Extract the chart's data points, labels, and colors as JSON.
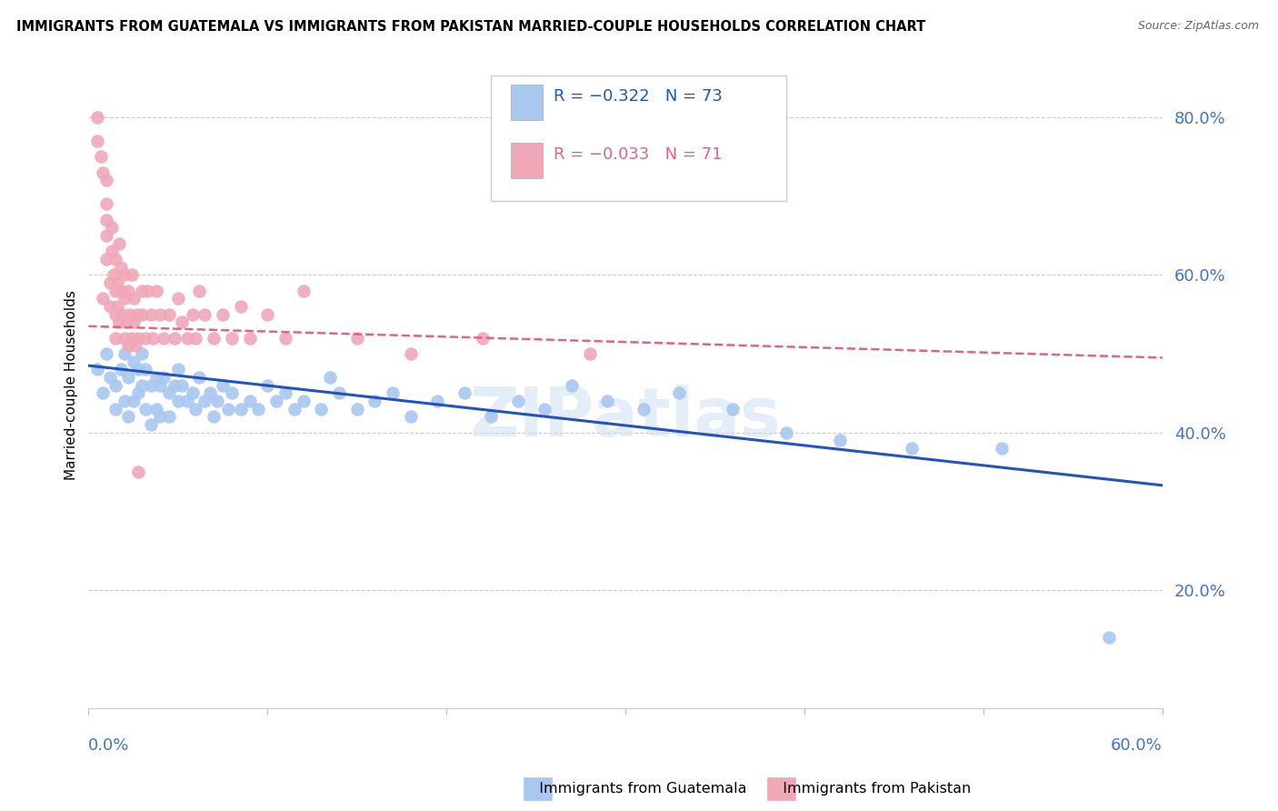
{
  "title": "IMMIGRANTS FROM GUATEMALA VS IMMIGRANTS FROM PAKISTAN MARRIED-COUPLE HOUSEHOLDS CORRELATION CHART",
  "source": "Source: ZipAtlas.com",
  "ylabel": "Married-couple Households",
  "yticks": [
    20.0,
    40.0,
    60.0,
    80.0
  ],
  "xlim": [
    0.0,
    0.6
  ],
  "ylim": [
    0.05,
    0.87
  ],
  "guatemala_color": "#a8c8f0",
  "pakistan_color": "#f0a8b8",
  "guatemala_line_color": "#2255bb",
  "pakistan_line_color": "#dd6688",
  "legend_R_guatemala": "R = −0.322",
  "legend_N_guatemala": "N = 73",
  "legend_R_pakistan": "R = −0.033",
  "legend_N_pakistan": "N = 71",
  "guatemala_x": [
    0.005,
    0.008,
    0.01,
    0.012,
    0.015,
    0.015,
    0.018,
    0.02,
    0.02,
    0.022,
    0.022,
    0.025,
    0.025,
    0.028,
    0.028,
    0.03,
    0.03,
    0.032,
    0.032,
    0.035,
    0.035,
    0.038,
    0.038,
    0.04,
    0.04,
    0.042,
    0.045,
    0.045,
    0.048,
    0.05,
    0.05,
    0.052,
    0.055,
    0.058,
    0.06,
    0.062,
    0.065,
    0.068,
    0.07,
    0.072,
    0.075,
    0.078,
    0.08,
    0.085,
    0.09,
    0.095,
    0.1,
    0.105,
    0.11,
    0.115,
    0.12,
    0.13,
    0.135,
    0.14,
    0.15,
    0.16,
    0.17,
    0.18,
    0.195,
    0.21,
    0.225,
    0.24,
    0.255,
    0.27,
    0.29,
    0.31,
    0.33,
    0.36,
    0.39,
    0.42,
    0.46,
    0.51,
    0.57
  ],
  "guatemala_y": [
    0.48,
    0.45,
    0.5,
    0.47,
    0.46,
    0.43,
    0.48,
    0.5,
    0.44,
    0.47,
    0.42,
    0.49,
    0.44,
    0.48,
    0.45,
    0.5,
    0.46,
    0.48,
    0.43,
    0.46,
    0.41,
    0.47,
    0.43,
    0.46,
    0.42,
    0.47,
    0.45,
    0.42,
    0.46,
    0.48,
    0.44,
    0.46,
    0.44,
    0.45,
    0.43,
    0.47,
    0.44,
    0.45,
    0.42,
    0.44,
    0.46,
    0.43,
    0.45,
    0.43,
    0.44,
    0.43,
    0.46,
    0.44,
    0.45,
    0.43,
    0.44,
    0.43,
    0.47,
    0.45,
    0.43,
    0.44,
    0.45,
    0.42,
    0.44,
    0.45,
    0.42,
    0.44,
    0.43,
    0.46,
    0.44,
    0.43,
    0.45,
    0.43,
    0.4,
    0.39,
    0.38,
    0.38,
    0.14
  ],
  "pakistan_x": [
    0.005,
    0.005,
    0.007,
    0.008,
    0.008,
    0.01,
    0.01,
    0.01,
    0.01,
    0.01,
    0.012,
    0.012,
    0.013,
    0.013,
    0.014,
    0.015,
    0.015,
    0.015,
    0.015,
    0.016,
    0.016,
    0.017,
    0.017,
    0.018,
    0.018,
    0.019,
    0.02,
    0.02,
    0.02,
    0.021,
    0.022,
    0.022,
    0.023,
    0.024,
    0.024,
    0.025,
    0.025,
    0.026,
    0.027,
    0.028,
    0.028,
    0.03,
    0.03,
    0.032,
    0.033,
    0.035,
    0.036,
    0.038,
    0.04,
    0.042,
    0.045,
    0.048,
    0.05,
    0.052,
    0.055,
    0.058,
    0.06,
    0.062,
    0.065,
    0.07,
    0.075,
    0.08,
    0.085,
    0.09,
    0.1,
    0.11,
    0.12,
    0.15,
    0.18,
    0.22,
    0.28
  ],
  "pakistan_y": [
    0.8,
    0.77,
    0.75,
    0.57,
    0.73,
    0.72,
    0.69,
    0.67,
    0.65,
    0.62,
    0.59,
    0.56,
    0.66,
    0.63,
    0.6,
    0.58,
    0.55,
    0.52,
    0.62,
    0.59,
    0.56,
    0.54,
    0.64,
    0.61,
    0.58,
    0.55,
    0.52,
    0.6,
    0.57,
    0.54,
    0.51,
    0.58,
    0.55,
    0.52,
    0.6,
    0.57,
    0.54,
    0.51,
    0.55,
    0.52,
    0.35,
    0.58,
    0.55,
    0.52,
    0.58,
    0.55,
    0.52,
    0.58,
    0.55,
    0.52,
    0.55,
    0.52,
    0.57,
    0.54,
    0.52,
    0.55,
    0.52,
    0.58,
    0.55,
    0.52,
    0.55,
    0.52,
    0.56,
    0.52,
    0.55,
    0.52,
    0.58,
    0.52,
    0.5,
    0.52,
    0.5
  ]
}
